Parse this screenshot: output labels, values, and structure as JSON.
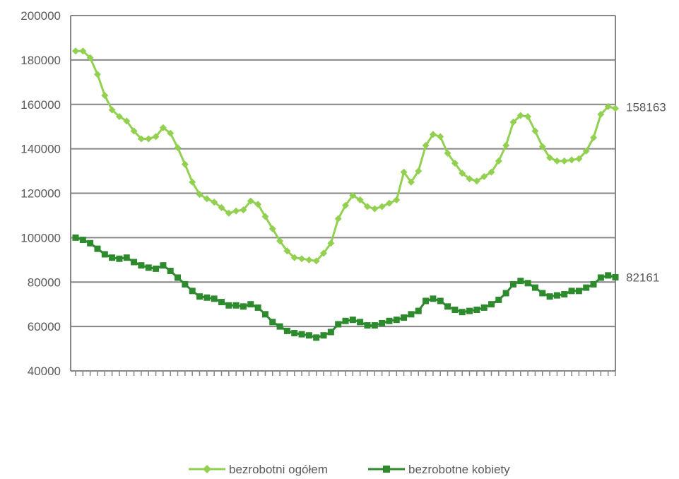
{
  "chart_data": {
    "type": "line",
    "title": "",
    "xlabel": "",
    "ylabel": "",
    "ylim": [
      40000,
      200000
    ],
    "yticks": [
      "200000",
      "180000",
      "160000",
      "140000",
      "120000",
      "100000",
      "80000",
      "60000",
      "40000"
    ],
    "grid": true,
    "legend_position": "bottom",
    "end_labels": [
      "158163",
      "82161"
    ],
    "series": [
      {
        "name": "bezrobotni ogółem",
        "color": "#92d050",
        "marker": "diamond",
        "values": [
          184000,
          184000,
          181000,
          173500,
          164000,
          157500,
          154500,
          152500,
          148000,
          144500,
          144500,
          145500,
          149500,
          147000,
          140500,
          133000,
          125000,
          119500,
          117500,
          116000,
          113500,
          111000,
          112000,
          112500,
          116500,
          115000,
          109500,
          104000,
          98500,
          94000,
          91000,
          90500,
          90000,
          89500,
          93000,
          97500,
          108500,
          114500,
          119000,
          117000,
          114000,
          113000,
          114000,
          115500,
          117000,
          129500,
          125000,
          130000,
          141500,
          146500,
          145500,
          138000,
          133500,
          129000,
          126500,
          125500,
          127500,
          129500,
          134500,
          141500,
          152000,
          155000,
          154500,
          148000,
          141000,
          136000,
          134500,
          134500,
          135000,
          135500,
          139000,
          145000,
          155500,
          159000,
          158163
        ]
      },
      {
        "name": "bezrobotne kobiety",
        "color": "#2d8a2d",
        "marker": "square",
        "values": [
          100000,
          99000,
          97500,
          95000,
          92500,
          91000,
          90500,
          91000,
          89000,
          87500,
          86500,
          86000,
          87500,
          85000,
          82000,
          79000,
          76000,
          73500,
          73000,
          72500,
          71000,
          69500,
          69500,
          69000,
          70000,
          68500,
          65500,
          62000,
          60000,
          58000,
          57000,
          56500,
          56000,
          55000,
          56000,
          57500,
          61000,
          62500,
          63000,
          62000,
          60500,
          60500,
          61500,
          62500,
          63000,
          64000,
          65500,
          67000,
          71500,
          72500,
          71500,
          69000,
          67500,
          66500,
          67000,
          67500,
          68500,
          70000,
          72000,
          75000,
          79000,
          80500,
          79500,
          77500,
          75000,
          73500,
          74000,
          74500,
          76000,
          76000,
          77500,
          79000,
          82000,
          83000,
          82161
        ]
      }
    ]
  }
}
